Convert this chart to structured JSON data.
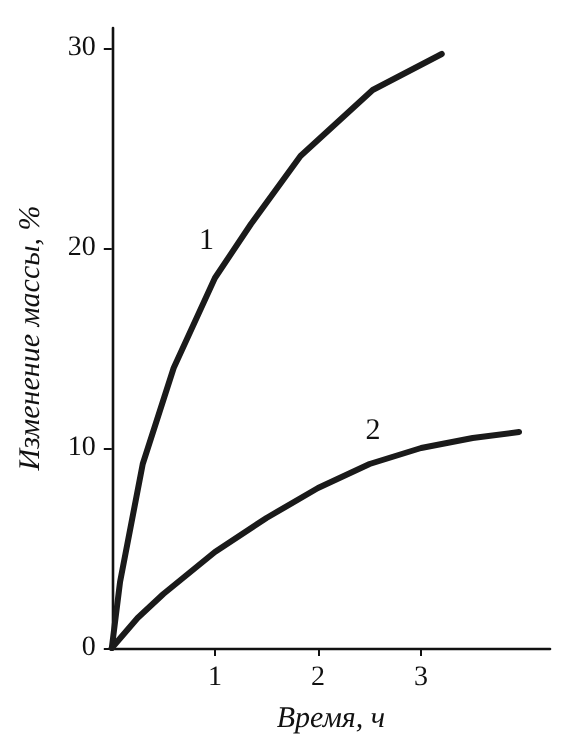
{
  "chart_data": {
    "type": "line",
    "xlabel": "Время, ч",
    "ylabel": "Изменение массы, %",
    "xlim": [
      0,
      4.25
    ],
    "ylim": [
      0,
      31
    ],
    "xticks": [
      1,
      2,
      3
    ],
    "yticks": [
      0,
      10,
      20,
      30
    ],
    "marker": "none",
    "line_style": "solid",
    "series": [
      {
        "color": "#1a1a1a",
        "x": [
          0,
          0.08,
          0.3,
          0.6,
          1,
          1.35,
          1.83,
          2.53,
          3.2
        ],
        "values": [
          0,
          3.3,
          9.2,
          14,
          18.5,
          21.2,
          24.6,
          27.9,
          29.7
        ]
      },
      {
        "color": "#1a1a1a",
        "x": [
          0,
          0.25,
          0.5,
          1,
          1.5,
          2,
          2.5,
          3,
          3.5,
          3.95
        ],
        "values": [
          0,
          1.5,
          2.7,
          4.8,
          6.5,
          8.0,
          9.2,
          10.0,
          10.5,
          10.8
        ]
      }
    ],
    "annotations": [
      "1",
      "2"
    ]
  }
}
